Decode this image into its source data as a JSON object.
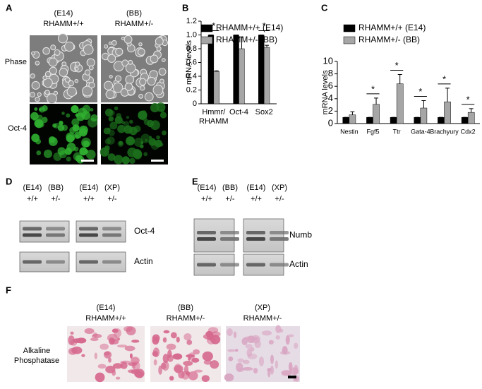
{
  "panel_labels": [
    "A",
    "B",
    "C",
    "D",
    "E",
    "F"
  ],
  "panel_a": {
    "columns": [
      [
        "(E14)",
        "RHAMM+/+"
      ],
      [
        "(BB)",
        "RHAMM+/-"
      ]
    ],
    "rows": [
      "Phase",
      "Oct-4"
    ]
  },
  "chart_data": [
    {
      "type": "bar",
      "y_label": "mRNA levels",
      "categories": [
        "Hmmr/\nRHAMM",
        "Oct-4",
        "Sox2"
      ],
      "series": [
        {
          "name": "RHAMM+/+ (E14)",
          "color": "#000000",
          "values": [
            1,
            1,
            1
          ],
          "errors": [
            0,
            0,
            0
          ]
        },
        {
          "name": "RHAMM+/- (BB)",
          "color": "#a6a6a6",
          "values": [
            0.47,
            0.8,
            0.82
          ],
          "errors": [
            0.01,
            0.17,
            0.03
          ]
        }
      ],
      "ylim": [
        0,
        1.2
      ],
      "yticks": [
        0,
        0.2,
        0.4,
        0.6,
        0.8,
        {
          "value": 1,
          "label": "1.0"
        },
        1.2
      ],
      "asterisk": "*",
      "significant": [
        true,
        false,
        true
      ]
    },
    {
      "type": "bar",
      "y_label": "mRNA levels",
      "categories": [
        "Nestin",
        "Fgf5",
        "Ttr",
        "Gata-4",
        "Brachyury",
        "Cdx2"
      ],
      "series": [
        {
          "name": "RHAMM+/+ (E14)",
          "color": "#000000",
          "values": [
            1,
            1,
            1,
            1,
            1,
            1
          ],
          "errors": [
            0,
            0,
            0,
            0,
            0,
            0
          ]
        },
        {
          "name": "RHAMM+/- (BB)",
          "color": "#a6a6a6",
          "values": [
            1.4,
            3.1,
            6.4,
            2.5,
            3.5,
            1.8
          ],
          "errors": [
            0.5,
            1.0,
            1.5,
            1.2,
            2.2,
            0.6
          ]
        }
      ],
      "ylim": [
        0,
        10
      ],
      "yticks": [
        0,
        2,
        4,
        6,
        8,
        10
      ],
      "asterisk": "*",
      "significant": [
        false,
        true,
        true,
        true,
        true,
        true
      ]
    }
  ],
  "panel_d": {
    "groups": [
      {
        "lines": [
          "(E14)",
          "(BB)"
        ],
        "genotypes": [
          "+/+",
          "+/-"
        ]
      },
      {
        "lines": [
          "(E14)",
          "(XP)"
        ],
        "genotypes": [
          "+/+",
          "+/-"
        ]
      }
    ],
    "bands": [
      "Oct-4",
      "Actin"
    ]
  },
  "panel_e": {
    "groups": [
      {
        "lines": [
          "(E14)",
          "(BB)"
        ],
        "genotypes": [
          "+/+",
          "+/-"
        ]
      },
      {
        "lines": [
          "(E14)",
          "(XP)"
        ],
        "genotypes": [
          "+/+",
          "+/-"
        ]
      }
    ],
    "bands": [
      "Numb",
      "Actin"
    ]
  },
  "panel_f": {
    "columns": [
      [
        "(E14)",
        "RHAMM+/+"
      ],
      [
        "(BB)",
        "RHAMM+/-"
      ],
      [
        "(XP)",
        "RHAMM+/-"
      ]
    ],
    "row_label": [
      "Alkaline",
      "Phosphatase"
    ]
  }
}
